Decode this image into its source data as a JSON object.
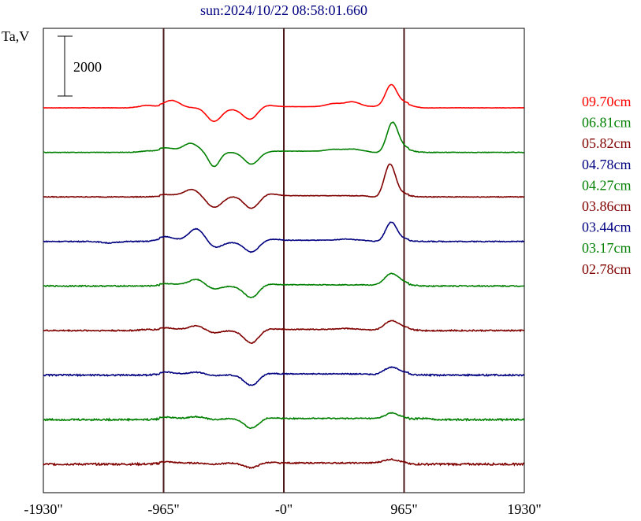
{
  "chart_data": {
    "type": "line",
    "title": "sun:2024/10/22 08:58:01.660",
    "ylabel": "Ta,V",
    "scale_bar_label": "2000",
    "scale_bar_value": 2000,
    "x_ticks": [
      {
        "value": -1930,
        "label": "-1930\""
      },
      {
        "value": -965,
        "label": "-965\""
      },
      {
        "value": 0,
        "label": "-0\""
      },
      {
        "value": 965,
        "label": "965\""
      },
      {
        "value": 1930,
        "label": "1930\""
      }
    ],
    "xlim": [
      -1930,
      1930
    ],
    "vertical_lines_at": [
      -965,
      0,
      965
    ],
    "series": [
      {
        "name": "09.70cm",
        "color": "#ff0000",
        "peaks": [
          [
            -1100,
            80
          ],
          [
            -900,
            210
          ],
          [
            -750,
            -30
          ],
          [
            -560,
            -490
          ],
          [
            -400,
            -60
          ],
          [
            -270,
            -420
          ],
          [
            -150,
            60
          ],
          [
            400,
            100
          ],
          [
            550,
            160
          ],
          [
            860,
            700
          ],
          [
            960,
            140
          ]
        ]
      },
      {
        "name": "06.81cm",
        "color": "#008000",
        "peaks": [
          [
            -1100,
            40
          ],
          [
            -950,
            110
          ],
          [
            -750,
            260
          ],
          [
            -560,
            -510
          ],
          [
            -420,
            -30
          ],
          [
            -260,
            -430
          ],
          [
            400,
            60
          ],
          [
            550,
            70
          ],
          [
            780,
            -70
          ],
          [
            870,
            950
          ],
          [
            960,
            120
          ]
        ]
      },
      {
        "name": "05.82cm",
        "color": "#800000",
        "peaks": [
          [
            -950,
            40
          ],
          [
            -740,
            210
          ],
          [
            -560,
            -380
          ],
          [
            -480,
            -20
          ],
          [
            -260,
            -420
          ],
          [
            -120,
            70
          ],
          [
            780,
            -90
          ],
          [
            850,
            1090
          ],
          [
            960,
            60
          ]
        ]
      },
      {
        "name": "04.78cm",
        "color": "#000080",
        "peaks": [
          [
            -1400,
            -50
          ],
          [
            -950,
            120
          ],
          [
            -700,
            390
          ],
          [
            -550,
            -240
          ],
          [
            -400,
            -50
          ],
          [
            -260,
            -390
          ],
          [
            -100,
            40
          ],
          [
            500,
            40
          ],
          [
            780,
            -60
          ],
          [
            860,
            620
          ],
          [
            960,
            40
          ]
        ]
      },
      {
        "name": "04.27cm",
        "color": "#008000",
        "peaks": [
          [
            -950,
            40
          ],
          [
            -700,
            190
          ],
          [
            -560,
            -140
          ],
          [
            -400,
            -40
          ],
          [
            -260,
            -430
          ],
          [
            -150,
            40
          ],
          [
            790,
            -60
          ],
          [
            860,
            400
          ],
          [
            980,
            40
          ]
        ]
      },
      {
        "name": "03.86cm",
        "color": "#800000",
        "peaks": [
          [
            -1100,
            30
          ],
          [
            -950,
            50
          ],
          [
            -700,
            120
          ],
          [
            -560,
            -120
          ],
          [
            -400,
            -40
          ],
          [
            -260,
            -460
          ],
          [
            -150,
            30
          ],
          [
            500,
            30
          ],
          [
            770,
            -50
          ],
          [
            860,
            300
          ],
          [
            980,
            40
          ]
        ]
      },
      {
        "name": "03.44cm",
        "color": "#000080",
        "peaks": [
          [
            -950,
            60
          ],
          [
            -700,
            60
          ],
          [
            -560,
            -60
          ],
          [
            -420,
            -30
          ],
          [
            -260,
            -390
          ],
          [
            -150,
            40
          ],
          [
            770,
            -40
          ],
          [
            860,
            230
          ],
          [
            980,
            30
          ]
        ]
      },
      {
        "name": "03.17cm",
        "color": "#008000",
        "peaks": [
          [
            -950,
            40
          ],
          [
            -700,
            60
          ],
          [
            -560,
            -40
          ],
          [
            -260,
            -330
          ],
          [
            -150,
            40
          ],
          [
            800,
            -40
          ],
          [
            860,
            200
          ],
          [
            1100,
            40
          ]
        ]
      },
      {
        "name": "02.78cm",
        "color": "#800000",
        "peaks": [
          [
            -950,
            40
          ],
          [
            -560,
            -40
          ],
          [
            -260,
            -160
          ],
          [
            -150,
            30
          ],
          [
            860,
            120
          ]
        ]
      }
    ]
  }
}
